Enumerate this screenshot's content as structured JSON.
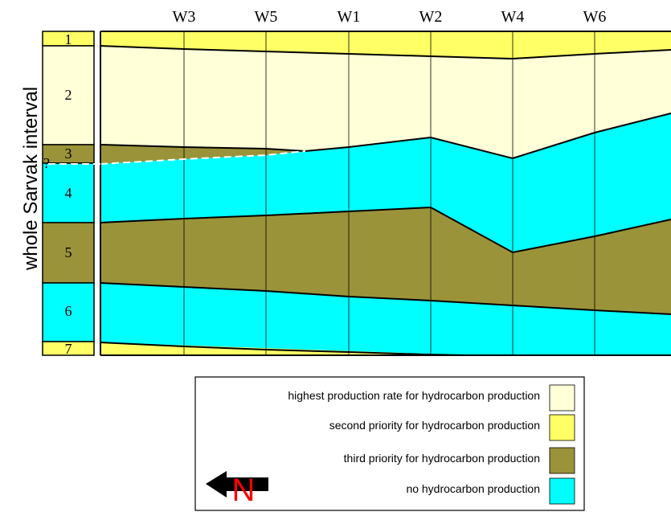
{
  "colors": {
    "highest": "#ffffd8",
    "second": "#ffff66",
    "third": "#9a9339",
    "none": "#00ffff",
    "north_letter": "#ff0000",
    "arrow": "#000000"
  },
  "yaxis_label": "whole Sarvak interval",
  "wells": [
    "W3",
    "W5",
    "W1",
    "W2",
    "W4",
    "W6"
  ],
  "units": [
    {
      "label": "1",
      "class": "second"
    },
    {
      "label": "2",
      "class": "highest"
    },
    {
      "label": "3",
      "class": "third"
    },
    {
      "label": "4",
      "class": "none"
    },
    {
      "label": "5",
      "class": "third"
    },
    {
      "label": "6",
      "class": "none"
    },
    {
      "label": "7",
      "class": "second"
    }
  ],
  "uncertain_mark": "?",
  "legend": [
    {
      "text": "highest production rate for hydrocarbon production",
      "class": "highest"
    },
    {
      "text": "second priority for hydrocarbon production",
      "class": "second"
    },
    {
      "text": "third priority for hydrocarbon production",
      "class": "third"
    },
    {
      "text": "no hydrocarbon production",
      "class": "none"
    }
  ],
  "north_label": "N",
  "icons": {
    "north_arrow": "arrow-left-icon"
  }
}
